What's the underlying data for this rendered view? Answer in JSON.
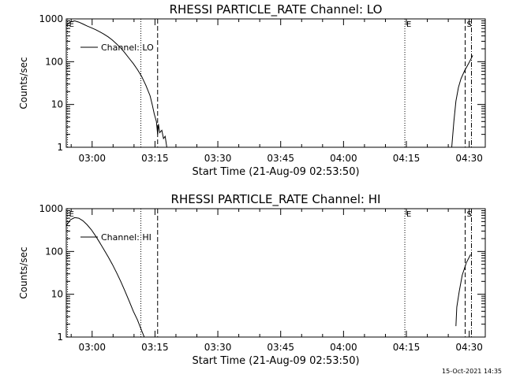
{
  "colors": {
    "background": "#ffffff",
    "foreground": "#000000"
  },
  "footer": {
    "timestamp": "15-Oct-2021 14:35"
  },
  "chart_data": [
    {
      "type": "line",
      "title": "RHESSI PARTICLE_RATE Channel: LO",
      "xlabel": "Start Time (21-Aug-09 02:53:50)",
      "ylabel": "Counts/sec",
      "x_unit": "minutes after 02:53:50",
      "xlim": [
        0,
        100
      ],
      "ylim": [
        1,
        1000
      ],
      "y_scale": "log",
      "grid": false,
      "legend_position": "top-left",
      "x_ticks": [
        {
          "t": 6.17,
          "label": "03:00"
        },
        {
          "t": 21.17,
          "label": "03:15"
        },
        {
          "t": 36.17,
          "label": "03:30"
        },
        {
          "t": 51.17,
          "label": "03:45"
        },
        {
          "t": 66.17,
          "label": "04:00"
        },
        {
          "t": 81.17,
          "label": "04:15"
        },
        {
          "t": 96.17,
          "label": "04:30"
        }
      ],
      "y_ticks": [
        {
          "v": 1,
          "label": "1"
        },
        {
          "v": 10,
          "label": "10"
        },
        {
          "v": 100,
          "label": "100"
        },
        {
          "v": 1000,
          "label": "1000"
        }
      ],
      "markers": [
        {
          "t": 0.3,
          "style": "dotted",
          "label": "E"
        },
        {
          "t": 17.8,
          "style": "dotted",
          "label": ""
        },
        {
          "t": 21.8,
          "style": "dashed",
          "label": ""
        },
        {
          "t": 80.8,
          "style": "dotted",
          "label": "E"
        },
        {
          "t": 95.2,
          "style": "dashed",
          "label": "S"
        },
        {
          "t": 96.7,
          "style": "dashdot",
          "label": ""
        }
      ],
      "series": [
        {
          "name": "Channel: LO",
          "segments": [
            [
              [
                0.0,
                700
              ],
              [
                1.0,
                850
              ],
              [
                2.0,
                900
              ],
              [
                3.0,
                840
              ],
              [
                4.0,
                760
              ],
              [
                5.0,
                680
              ],
              [
                6.0,
                620
              ],
              [
                7.0,
                560
              ],
              [
                8.0,
                500
              ],
              [
                9.0,
                440
              ],
              [
                10.0,
                380
              ],
              [
                11.0,
                320
              ],
              [
                12.0,
                260
              ],
              [
                13.0,
                210
              ],
              [
                14.0,
                160
              ],
              [
                15.0,
                120
              ],
              [
                16.0,
                90
              ],
              [
                17.0,
                65
              ],
              [
                18.0,
                45
              ],
              [
                19.0,
                28
              ],
              [
                20.0,
                16
              ],
              [
                20.5,
                10
              ],
              [
                21.0,
                6
              ],
              [
                21.5,
                4
              ],
              [
                21.8,
                2
              ],
              [
                22.0,
                3.5
              ],
              [
                22.3,
                2.2
              ],
              [
                22.8,
                2.5
              ],
              [
                23.2,
                1.6
              ],
              [
                23.6,
                1.8
              ],
              [
                24.0,
                1.0
              ]
            ],
            [
              [
                92.0,
                1.0
              ],
              [
                92.5,
                4
              ],
              [
                93.0,
                12
              ],
              [
                93.6,
                25
              ],
              [
                94.2,
                40
              ],
              [
                95.0,
                60
              ],
              [
                96.0,
                90
              ],
              [
                97.0,
                140
              ]
            ]
          ]
        }
      ]
    },
    {
      "type": "line",
      "title": "RHESSI PARTICLE_RATE Channel: HI",
      "xlabel": "Start Time (21-Aug-09 02:53:50)",
      "ylabel": "Counts/sec",
      "x_unit": "minutes after 02:53:50",
      "xlim": [
        0,
        100
      ],
      "ylim": [
        1,
        1000
      ],
      "y_scale": "log",
      "grid": false,
      "legend_position": "top-left",
      "x_ticks": [
        {
          "t": 6.17,
          "label": "03:00"
        },
        {
          "t": 21.17,
          "label": "03:15"
        },
        {
          "t": 36.17,
          "label": "03:30"
        },
        {
          "t": 51.17,
          "label": "03:45"
        },
        {
          "t": 66.17,
          "label": "04:00"
        },
        {
          "t": 81.17,
          "label": "04:15"
        },
        {
          "t": 96.17,
          "label": "04:30"
        }
      ],
      "y_ticks": [
        {
          "v": 1,
          "label": "1"
        },
        {
          "v": 10,
          "label": "10"
        },
        {
          "v": 100,
          "label": "100"
        },
        {
          "v": 1000,
          "label": "1000"
        }
      ],
      "markers": [
        {
          "t": 0.3,
          "style": "dotted",
          "label": "E"
        },
        {
          "t": 17.8,
          "style": "dotted",
          "label": ""
        },
        {
          "t": 21.8,
          "style": "dashed",
          "label": ""
        },
        {
          "t": 80.8,
          "style": "dotted",
          "label": "E"
        },
        {
          "t": 95.2,
          "style": "dashed",
          "label": "S"
        },
        {
          "t": 96.7,
          "style": "dashdot",
          "label": ""
        }
      ],
      "series": [
        {
          "name": "Channel: HI",
          "segments": [
            [
              [
                0.0,
                400
              ],
              [
                1.0,
                550
              ],
              [
                2.0,
                620
              ],
              [
                3.0,
                600
              ],
              [
                4.0,
                520
              ],
              [
                5.0,
                420
              ],
              [
                6.0,
                320
              ],
              [
                7.0,
                230
              ],
              [
                8.0,
                160
              ],
              [
                9.0,
                110
              ],
              [
                10.0,
                75
              ],
              [
                11.0,
                50
              ],
              [
                12.0,
                32
              ],
              [
                13.0,
                20
              ],
              [
                14.0,
                12
              ],
              [
                15.0,
                7
              ],
              [
                16.0,
                4
              ],
              [
                17.0,
                2.5
              ],
              [
                18.0,
                1.4
              ],
              [
                18.6,
                1.0
              ]
            ],
            [
              [
                93.0,
                1.8
              ],
              [
                93.2,
                5
              ],
              [
                93.8,
                12
              ],
              [
                94.5,
                28
              ],
              [
                95.5,
                55
              ],
              [
                96.5,
                85
              ]
            ]
          ]
        }
      ]
    }
  ]
}
